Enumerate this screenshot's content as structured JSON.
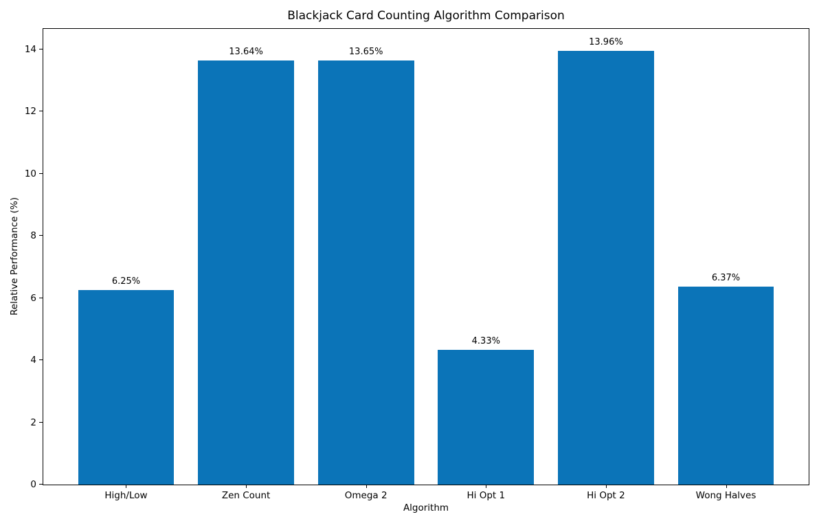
{
  "chart_data": {
    "type": "bar",
    "title": "Blackjack Card Counting Algorithm Comparison",
    "xlabel": "Algorithm",
    "ylabel": "Relative Performance (%)",
    "categories": [
      "High/Low",
      "Zen Count",
      "Omega 2",
      "Hi Opt 1",
      "Hi Opt 2",
      "Wong Halves"
    ],
    "values": [
      6.25,
      13.64,
      13.65,
      4.33,
      13.96,
      6.37
    ],
    "value_labels": [
      "6.25%",
      "13.64%",
      "13.65%",
      "4.33%",
      "13.96%",
      "6.37%"
    ],
    "bar_color": "#0b74b8",
    "axis_color": "#000000",
    "text_color": "#000000",
    "background_color": "#ffffff",
    "ylim": [
      0,
      14.66
    ],
    "yticks": [
      0,
      2,
      4,
      6,
      8,
      10,
      12,
      14
    ],
    "grid": false,
    "legend": null,
    "bar_width_ratio": 0.8
  }
}
